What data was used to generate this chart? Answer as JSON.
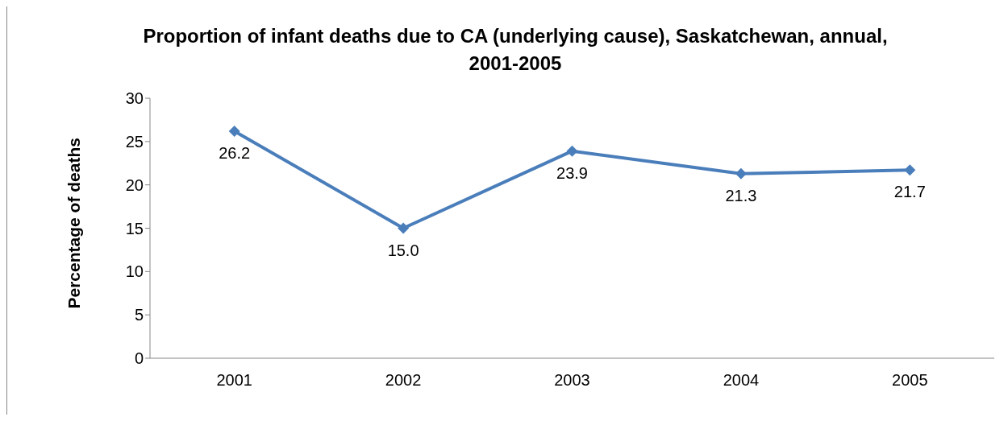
{
  "chart_data": {
    "type": "line",
    "title": "Proportion of infant deaths due to CA (underlying cause), Saskatchewan, annual, 2001-2005",
    "ylabel": "Percentage of deaths",
    "categories": [
      "2001",
      "2002",
      "2003",
      "2004",
      "2005"
    ],
    "series": [
      {
        "color": "#4a7ebb",
        "values": [
          26.2,
          15.0,
          23.9,
          21.3,
          21.7
        ],
        "value_labels": [
          "26.2",
          "15.0",
          "23.9",
          "21.3",
          "21.7"
        ]
      }
    ],
    "ylim": [
      0,
      30
    ],
    "yticks": [
      0,
      5,
      10,
      15,
      20,
      25,
      30
    ],
    "marker": "diamond",
    "line_style": "solid"
  }
}
